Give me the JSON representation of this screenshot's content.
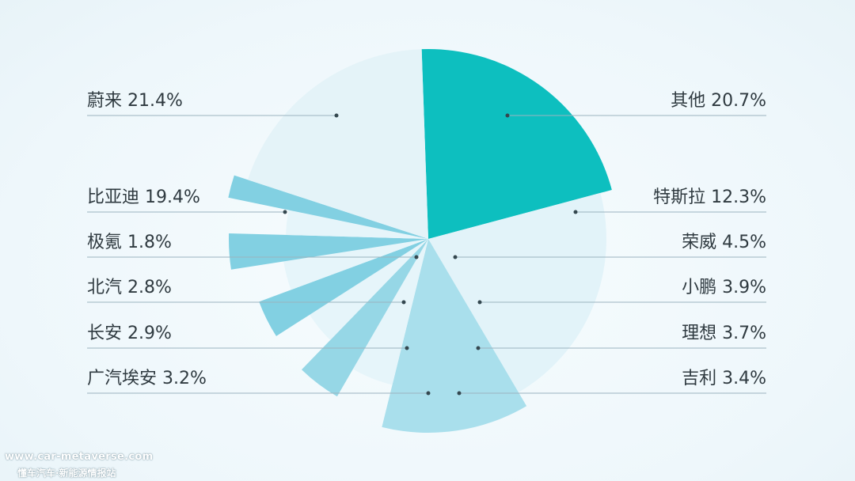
{
  "chart_data": {
    "type": "pie",
    "title": "",
    "slices": [
      {
        "label": "蔚来",
        "value": 21.4,
        "display": "蔚来 21.4%",
        "color": "#0dbfbf",
        "side": "left"
      },
      {
        "label": "其他",
        "value": 20.7,
        "display": "其他 20.7%",
        "color": "#e2f3f9",
        "side": "right"
      },
      {
        "label": "特斯拉",
        "value": 12.3,
        "display": "特斯拉 12.3%",
        "color": "#a9dfec",
        "side": "right"
      },
      {
        "label": "荣威",
        "value": 4.5,
        "display": "荣威 4.5%",
        "color": "#e6f5fa",
        "side": "right"
      },
      {
        "label": "小鹏",
        "value": 3.9,
        "display": "小鹏 3.9%",
        "color": "#96d7e6",
        "side": "right"
      },
      {
        "label": "理想",
        "value": 3.7,
        "display": "理想 3.7%",
        "color": "#e6f5fa",
        "side": "right"
      },
      {
        "label": "吉利",
        "value": 3.4,
        "display": "吉利 3.4%",
        "color": "#82d0e2",
        "side": "right"
      },
      {
        "label": "广汽埃安",
        "value": 3.2,
        "display": "广汽埃安 3.2%",
        "color": "#e6f5fa",
        "side": "left"
      },
      {
        "label": "长安",
        "value": 2.9,
        "display": "长安 2.9%",
        "color": "#82d0e2",
        "side": "left"
      },
      {
        "label": "北汽",
        "value": 2.8,
        "display": "北汽 2.8%",
        "color": "#e6f5fa",
        "side": "left"
      },
      {
        "label": "极氪",
        "value": 1.8,
        "display": "极氪 1.8%",
        "color": "#82d0e2",
        "side": "left"
      },
      {
        "label": "比亚迪",
        "value": 19.4,
        "display": "比亚迪 19.4%",
        "color": "#e4f3f8",
        "side": "left"
      }
    ]
  },
  "watermark": {
    "url": "www.car-metaverse.com",
    "name": "懂车汽车·新能源情报站"
  }
}
